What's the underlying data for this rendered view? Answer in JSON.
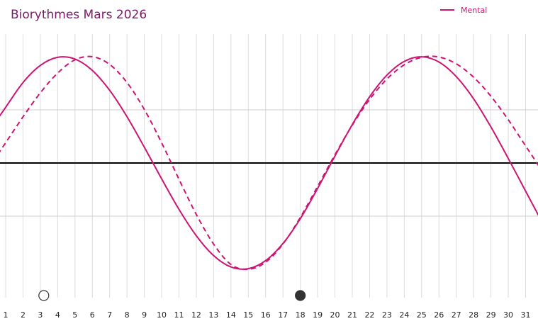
{
  "chart_data": {
    "type": "line",
    "title": "Biorythmes Mars 2026",
    "x": [
      1,
      2,
      3,
      4,
      5,
      6,
      7,
      8,
      9,
      10,
      11,
      12,
      13,
      14,
      15,
      16,
      17,
      18,
      19,
      20,
      21,
      22,
      23,
      24,
      25,
      26,
      27,
      28,
      29,
      30,
      31
    ],
    "xticks": [
      "1",
      "2",
      "3",
      "4",
      "5",
      "6",
      "7",
      "8",
      "9",
      "10",
      "11",
      "12",
      "13",
      "14",
      "15",
      "16",
      "17",
      "18",
      "19",
      "20",
      "21",
      "22",
      "23",
      "24",
      "25",
      "26",
      "27",
      "28",
      "29",
      "30",
      "31"
    ],
    "xlim": [
      1,
      31.5
    ],
    "ylim": [
      -1.2,
      1.2
    ],
    "series": [
      {
        "name": "Mental",
        "color": "#cc1473",
        "style": "solid",
        "values": [
          0.524,
          0.757,
          0.918,
          0.994,
          0.978,
          0.871,
          0.684,
          0.436,
          0.149,
          -0.149,
          -0.436,
          -0.684,
          -0.871,
          -0.978,
          -0.994,
          -0.918,
          -0.757,
          -0.524,
          -0.239,
          0.066,
          0.362,
          0.623,
          0.827,
          0.956,
          0.999,
          0.95,
          0.813,
          0.604,
          0.339,
          0.043,
          -0.264
        ]
      },
      {
        "color": "#cc1473",
        "style": "dashed",
        "values": [
          0.191,
          0.434,
          0.66,
          0.846,
          0.971,
          1.0,
          0.927,
          0.757,
          0.504,
          0.19,
          -0.153,
          -0.484,
          -0.763,
          -0.955,
          -1.0,
          -0.934,
          -0.762,
          -0.512,
          -0.22,
          0.078,
          0.356,
          0.598,
          0.79,
          0.924,
          0.994,
          0.997,
          0.933,
          0.807,
          0.628,
          0.407,
          0.161
        ]
      }
    ],
    "markers": [
      {
        "day": 3.2,
        "type": "hollow-circle"
      },
      {
        "day": 18,
        "type": "filled-circle"
      }
    ],
    "grid": {
      "vertical": true,
      "horizontal": true
    },
    "legend_position": "top-right"
  }
}
